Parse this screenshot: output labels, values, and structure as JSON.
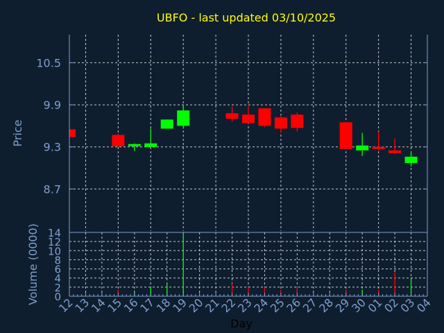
{
  "chart_data": [
    {
      "type": "candlestick",
      "title": "UBFO - last updated 03/10/2025",
      "ylabel": "Price",
      "xlabel": "Day",
      "ylim": [
        8.1,
        10.9
      ],
      "yticks": [
        "8.7",
        "9.3",
        "9.9",
        "10.5"
      ],
      "ytick_values": [
        8.7,
        9.3,
        9.9,
        10.5
      ],
      "grid": true,
      "categories": [
        "12",
        "13",
        "14",
        "15",
        "16",
        "17",
        "18",
        "19",
        "20",
        "21",
        "22",
        "23",
        "24",
        "25",
        "26",
        "27",
        "28",
        "29",
        "30",
        "01",
        "02",
        "03",
        "04"
      ],
      "candles": [
        {
          "day": "12",
          "open": 9.55,
          "high": 9.55,
          "low": 9.44,
          "close": 9.44
        },
        {
          "day": "15",
          "open": 9.47,
          "high": 9.49,
          "low": 9.3,
          "close": 9.31
        },
        {
          "day": "16",
          "open": 9.31,
          "high": 9.35,
          "low": 9.24,
          "close": 9.34
        },
        {
          "day": "17",
          "open": 9.3,
          "high": 9.56,
          "low": 9.3,
          "close": 9.35
        },
        {
          "day": "18",
          "open": 9.56,
          "high": 9.69,
          "low": 9.56,
          "close": 9.69
        },
        {
          "day": "19",
          "open": 9.6,
          "high": 9.89,
          "low": 9.56,
          "close": 9.82
        },
        {
          "day": "22",
          "open": 9.78,
          "high": 9.88,
          "low": 9.66,
          "close": 9.7
        },
        {
          "day": "23",
          "open": 9.76,
          "high": 9.9,
          "low": 9.63,
          "close": 9.64
        },
        {
          "day": "24",
          "open": 9.85,
          "high": 9.85,
          "low": 9.58,
          "close": 9.6
        },
        {
          "day": "25",
          "open": 9.72,
          "high": 9.75,
          "low": 9.5,
          "close": 9.56
        },
        {
          "day": "26",
          "open": 9.76,
          "high": 9.79,
          "low": 9.52,
          "close": 9.57
        },
        {
          "day": "29",
          "open": 9.65,
          "high": 9.65,
          "low": 9.27,
          "close": 9.27
        },
        {
          "day": "30",
          "open": 9.25,
          "high": 9.5,
          "low": 9.17,
          "close": 9.32
        },
        {
          "day": "01",
          "open": 9.3,
          "high": 9.52,
          "low": 9.25,
          "close": 9.27
        },
        {
          "day": "02",
          "open": 9.25,
          "high": 9.42,
          "low": 9.2,
          "close": 9.21
        },
        {
          "day": "03",
          "open": 9.07,
          "high": 9.23,
          "low": 9.02,
          "close": 9.16
        }
      ],
      "up_color": "#00ff00",
      "down_color": "#ff0000"
    },
    {
      "type": "bar",
      "ylabel": "Volume (0000)",
      "xlabel": "Day",
      "ylim": [
        0,
        14
      ],
      "yticks": [
        "0",
        "2",
        "4",
        "6",
        "8",
        "10",
        "12",
        "14"
      ],
      "ytick_values": [
        0,
        2,
        4,
        6,
        8,
        10,
        12,
        14
      ],
      "grid": true,
      "categories": [
        "12",
        "13",
        "14",
        "15",
        "16",
        "17",
        "18",
        "19",
        "20",
        "21",
        "22",
        "23",
        "24",
        "25",
        "26",
        "27",
        "28",
        "29",
        "30",
        "01",
        "02",
        "03",
        "04"
      ],
      "bars": [
        {
          "day": "15",
          "value": 1.4,
          "direction": "down"
        },
        {
          "day": "16",
          "value": 0.8,
          "direction": "up"
        },
        {
          "day": "17",
          "value": 2.0,
          "direction": "up"
        },
        {
          "day": "18",
          "value": 2.6,
          "direction": "up"
        },
        {
          "day": "19",
          "value": 14,
          "direction": "up"
        },
        {
          "day": "22",
          "value": 2.8,
          "direction": "down"
        },
        {
          "day": "23",
          "value": 2.0,
          "direction": "down"
        },
        {
          "day": "24",
          "value": 2.0,
          "direction": "down"
        },
        {
          "day": "25",
          "value": 1.4,
          "direction": "down"
        },
        {
          "day": "26",
          "value": 2.0,
          "direction": "down"
        },
        {
          "day": "29",
          "value": 1.4,
          "direction": "down"
        },
        {
          "day": "30",
          "value": 1.4,
          "direction": "up"
        },
        {
          "day": "01",
          "value": 1.4,
          "direction": "down"
        },
        {
          "day": "02",
          "value": 5.2,
          "direction": "down"
        },
        {
          "day": "03",
          "value": 3.8,
          "direction": "up"
        }
      ]
    }
  ],
  "colors": {
    "background": "#0f1e2f",
    "axis": "#7f9fcf",
    "grid": "#c8c8c8",
    "title": "#ffff00",
    "xlabel": "#000000"
  }
}
